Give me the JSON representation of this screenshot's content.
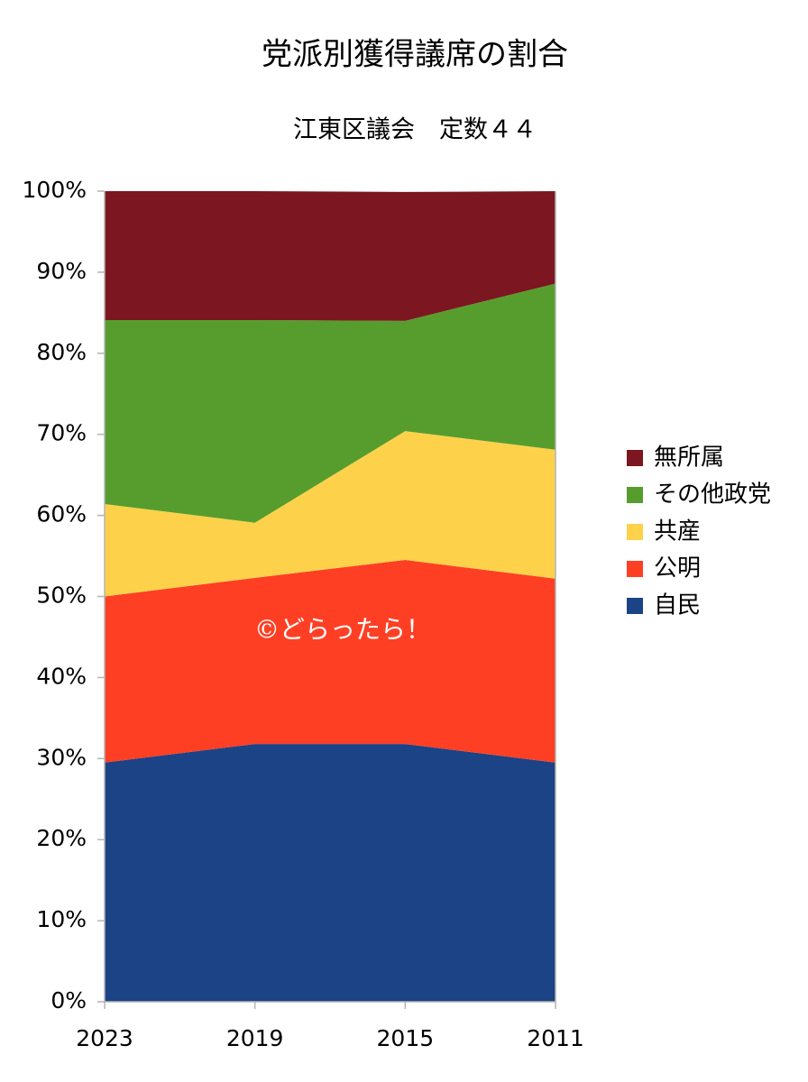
{
  "chart_data": {
    "type": "stacked_area",
    "title": "党派別獲得議席の割合",
    "subtitle": "江東区議会　定数４４",
    "annotation": "©どらったら！",
    "categories": [
      "2023",
      "2019",
      "2015",
      "2011"
    ],
    "series": [
      {
        "name": "自民",
        "color": "#1b4385",
        "values": [
          29.5,
          31.8,
          31.8,
          29.5
        ]
      },
      {
        "name": "公明",
        "color": "#ff3f24",
        "values": [
          20.5,
          20.5,
          22.7,
          22.7
        ]
      },
      {
        "name": "共産",
        "color": "#fdd24a",
        "values": [
          11.4,
          6.8,
          15.9,
          15.9
        ]
      },
      {
        "name": "その他政党",
        "color": "#579d2d",
        "values": [
          22.7,
          25.0,
          13.6,
          20.5
        ]
      },
      {
        "name": "無所属",
        "color": "#7c1620",
        "values": [
          15.9,
          15.9,
          15.9,
          11.4
        ]
      }
    ],
    "ylim": [
      0,
      100
    ],
    "yticks": [
      {
        "value": 0,
        "label": "0%"
      },
      {
        "value": 10,
        "label": "10%"
      },
      {
        "value": 20,
        "label": "20%"
      },
      {
        "value": 30,
        "label": "30%"
      },
      {
        "value": 40,
        "label": "40%"
      },
      {
        "value": 50,
        "label": "50%"
      },
      {
        "value": 60,
        "label": "60%"
      },
      {
        "value": 70,
        "label": "70%"
      },
      {
        "value": 80,
        "label": "80%"
      },
      {
        "value": 90,
        "label": "90%"
      },
      {
        "value": 100,
        "label": "100%"
      }
    ],
    "grid": false,
    "legend": "right"
  }
}
